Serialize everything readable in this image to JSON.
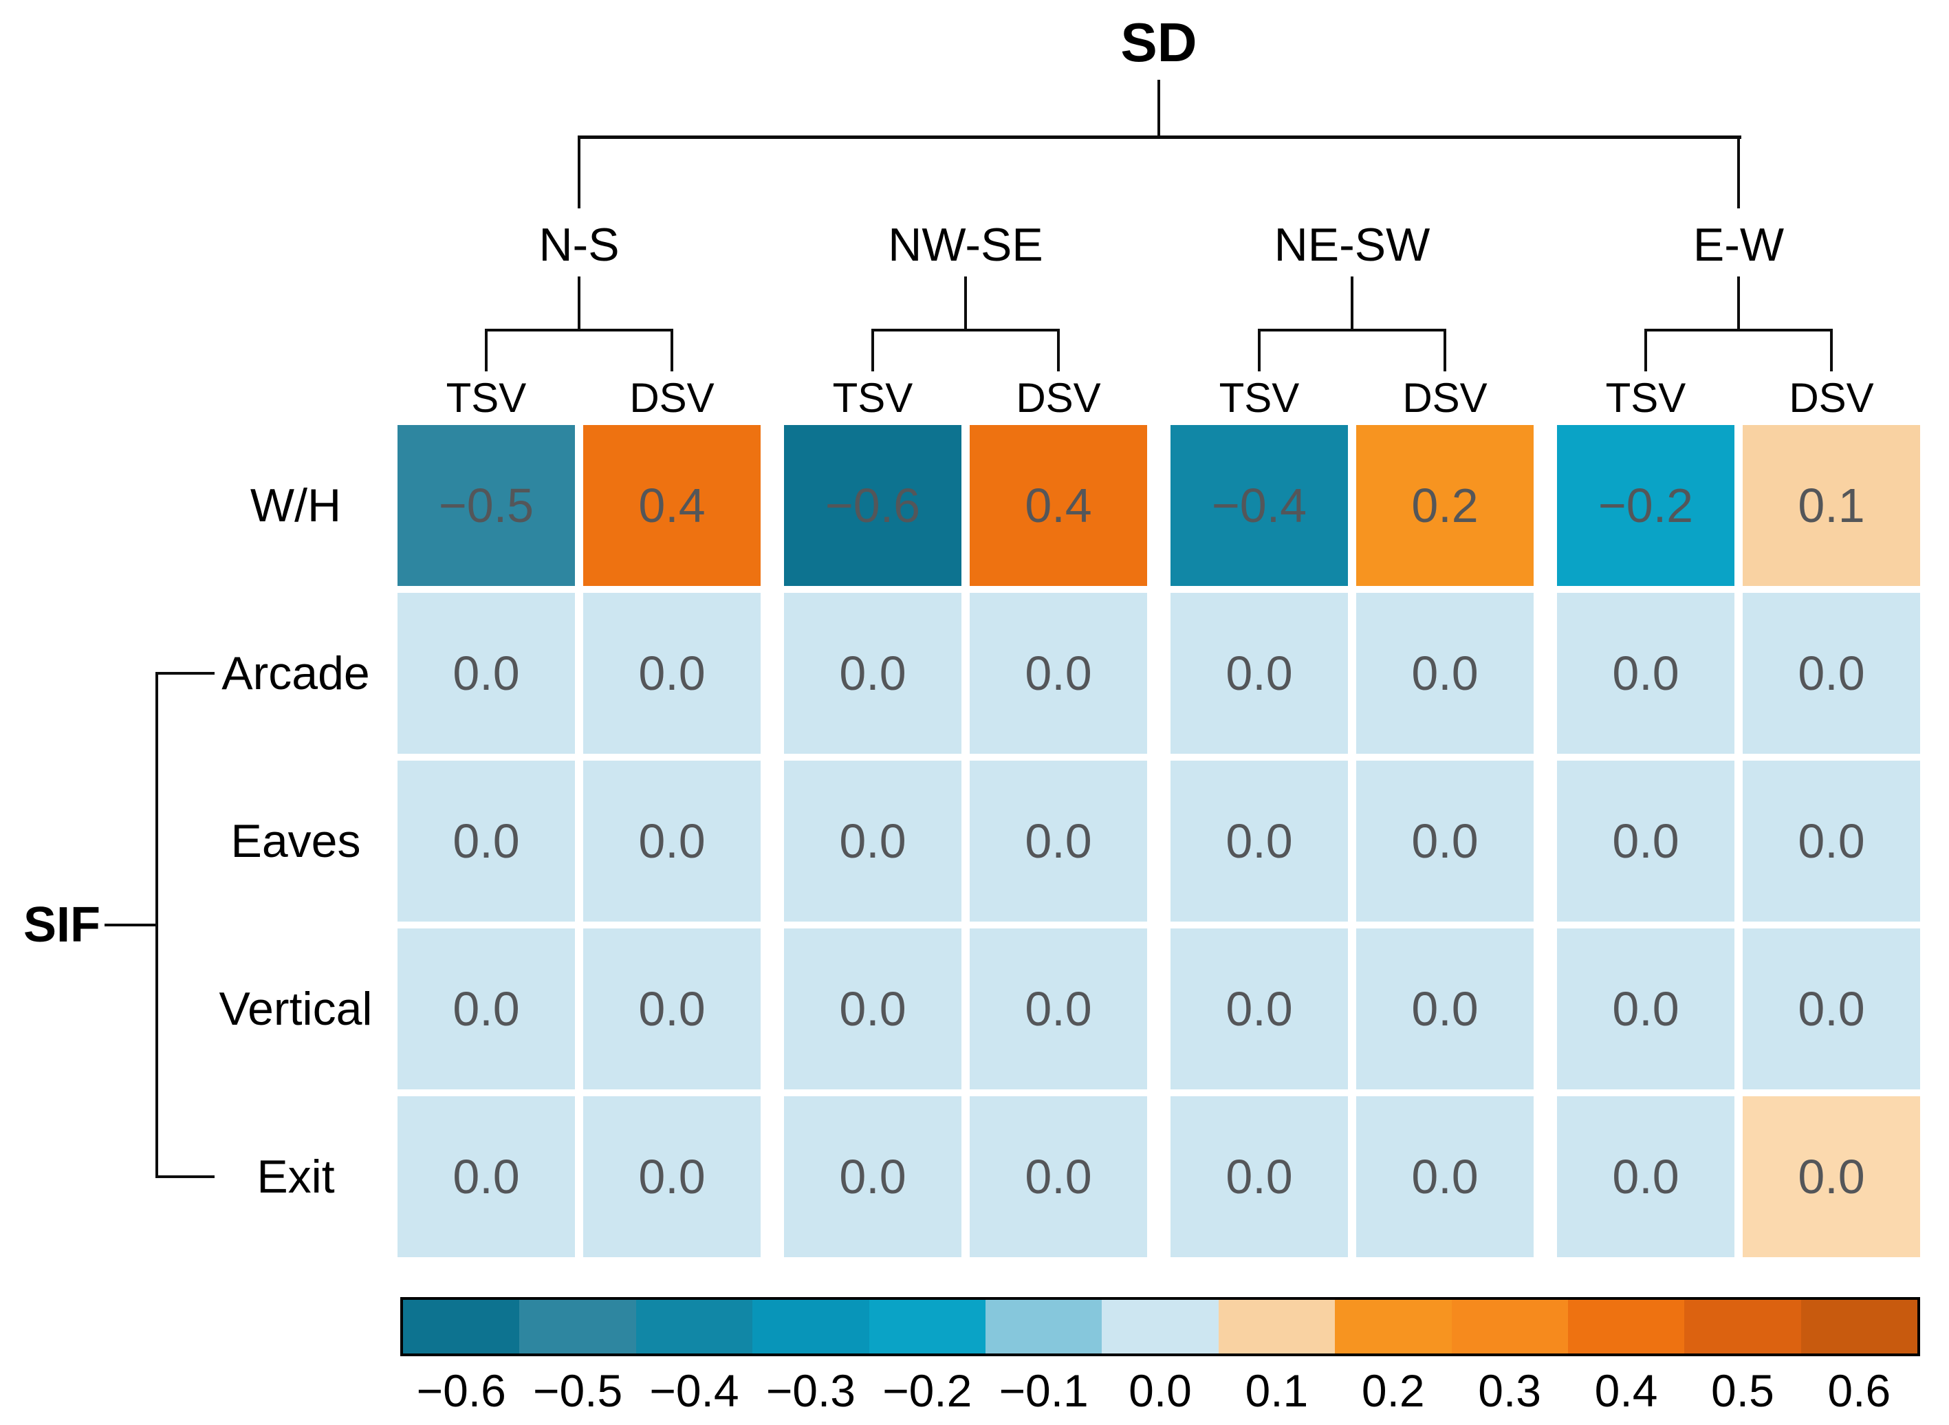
{
  "chart_data": {
    "type": "heatmap",
    "title": "SD",
    "column_groups": [
      {
        "label": "N-S",
        "columns": [
          "TSV",
          "DSV"
        ]
      },
      {
        "label": "NW-SE",
        "columns": [
          "TSV",
          "DSV"
        ]
      },
      {
        "label": "NE-SW",
        "columns": [
          "TSV",
          "DSV"
        ]
      },
      {
        "label": "E-W",
        "columns": [
          "TSV",
          "DSV"
        ]
      }
    ],
    "row_labels": [
      "W/H",
      "Arcade",
      "Eaves",
      "Vertical",
      "Exit"
    ],
    "row_group": {
      "label": "SIF",
      "rows": [
        "Arcade",
        "Eaves",
        "Vertical",
        "Exit"
      ]
    },
    "values": [
      [
        -0.5,
        0.4,
        -0.6,
        0.4,
        -0.4,
        0.2,
        -0.2,
        0.1
      ],
      [
        0.0,
        0.0,
        0.0,
        0.0,
        0.0,
        0.0,
        0.0,
        0.0
      ],
      [
        0.0,
        0.0,
        0.0,
        0.0,
        0.0,
        0.0,
        0.0,
        0.0
      ],
      [
        0.0,
        0.0,
        0.0,
        0.0,
        0.0,
        0.0,
        0.0,
        0.0
      ],
      [
        0.0,
        0.0,
        0.0,
        0.0,
        0.0,
        0.0,
        0.0,
        0.0
      ]
    ],
    "value_labels": [
      [
        "−0.5",
        "0.4",
        "−0.6",
        "0.4",
        "−0.4",
        "0.2",
        "−0.2",
        "0.1"
      ],
      [
        "0.0",
        "0.0",
        "0.0",
        "0.0",
        "0.0",
        "0.0",
        "0.0",
        "0.0"
      ],
      [
        "0.0",
        "0.0",
        "0.0",
        "0.0",
        "0.0",
        "0.0",
        "0.0",
        "0.0"
      ],
      [
        "0.0",
        "0.0",
        "0.0",
        "0.0",
        "0.0",
        "0.0",
        "0.0",
        "0.0"
      ],
      [
        "0.0",
        "0.0",
        "0.0",
        "0.0",
        "0.0",
        "0.0",
        "0.0",
        "0.0"
      ]
    ],
    "cell_colors": [
      [
        "#2e86a0",
        "#ee7211",
        "#0d7390",
        "#ee7211",
        "#1187a6",
        "#f79420",
        "#0aa3c6",
        "#f9d2a2"
      ],
      [
        "#cde6f1",
        "#cde6f1",
        "#cde6f1",
        "#cde6f1",
        "#cde6f1",
        "#cde6f1",
        "#cde6f1",
        "#cde6f1"
      ],
      [
        "#cde6f1",
        "#cde6f1",
        "#cde6f1",
        "#cde6f1",
        "#cde6f1",
        "#cde6f1",
        "#cde6f1",
        "#cde6f1"
      ],
      [
        "#cde6f1",
        "#cde6f1",
        "#cde6f1",
        "#cde6f1",
        "#cde6f1",
        "#cde6f1",
        "#cde6f1",
        "#cde6f1"
      ],
      [
        "#cde6f1",
        "#cde6f1",
        "#cde6f1",
        "#cde6f1",
        "#cde6f1",
        "#cde6f1",
        "#cde6f1",
        "#fbd9ae"
      ]
    ],
    "value_text_color": "#545659",
    "colorbar": {
      "range": [
        -0.6,
        0.6
      ],
      "tick_labels": [
        "−0.6",
        "−0.5",
        "−0.4",
        "−0.3",
        "−0.2",
        "−0.1",
        "0.0",
        "0.1",
        "0.2",
        "0.3",
        "0.4",
        "0.5",
        "0.6"
      ],
      "segment_colors": [
        "#0d7390",
        "#2e86a0",
        "#1187a6",
        "#0895b9",
        "#0aa3c6",
        "#86c7dc",
        "#cde6f1",
        "#f9d2a2",
        "#f79420",
        "#f68a1d",
        "#ee7211",
        "#dc6210",
        "#c85a0e"
      ]
    }
  }
}
